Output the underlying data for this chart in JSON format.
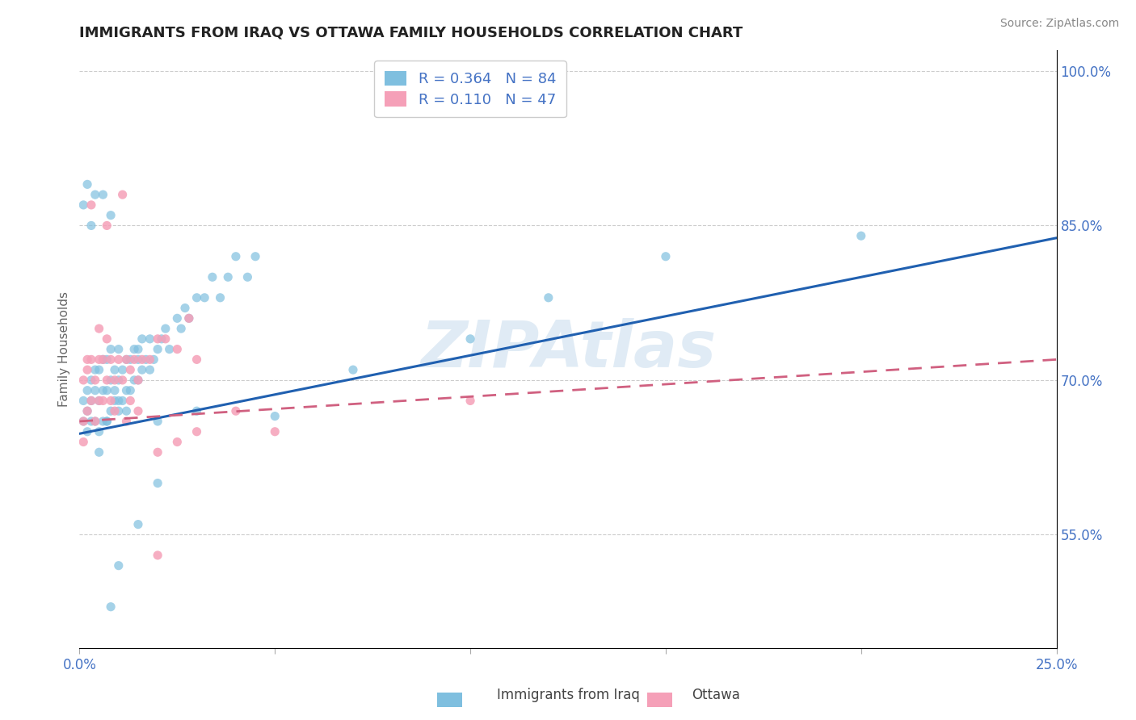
{
  "title": "IMMIGRANTS FROM IRAQ VS OTTAWA FAMILY HOUSEHOLDS CORRELATION CHART",
  "source_text": "Source: ZipAtlas.com",
  "ylabel": "Family Households",
  "watermark": "ZIPAtlas",
  "xlim": [
    0.0,
    0.25
  ],
  "ylim": [
    0.44,
    1.02
  ],
  "ytick_right": [
    0.55,
    0.7,
    0.85,
    1.0
  ],
  "ytick_right_labels": [
    "55.0%",
    "70.0%",
    "85.0%",
    "100.0%"
  ],
  "blue_R": 0.364,
  "blue_N": 84,
  "pink_R": 0.11,
  "pink_N": 47,
  "blue_color": "#7fbfdf",
  "pink_color": "#f5a0b8",
  "blue_line_color": "#2060b0",
  "pink_line_color": "#d06080",
  "legend_label_blue": "Immigrants from Iraq",
  "legend_label_pink": "Ottawa",
  "blue_scatter_x": [
    0.001,
    0.001,
    0.002,
    0.002,
    0.002,
    0.003,
    0.003,
    0.003,
    0.004,
    0.004,
    0.004,
    0.005,
    0.005,
    0.005,
    0.006,
    0.006,
    0.006,
    0.007,
    0.007,
    0.007,
    0.008,
    0.008,
    0.008,
    0.009,
    0.009,
    0.01,
    0.01,
    0.01,
    0.011,
    0.011,
    0.012,
    0.012,
    0.013,
    0.013,
    0.014,
    0.014,
    0.015,
    0.015,
    0.016,
    0.016,
    0.017,
    0.018,
    0.018,
    0.019,
    0.02,
    0.021,
    0.022,
    0.023,
    0.025,
    0.026,
    0.027,
    0.028,
    0.03,
    0.032,
    0.034,
    0.036,
    0.038,
    0.04,
    0.043,
    0.045,
    0.001,
    0.002,
    0.003,
    0.004,
    0.005,
    0.006,
    0.007,
    0.008,
    0.009,
    0.01,
    0.012,
    0.015,
    0.02,
    0.03,
    0.05,
    0.07,
    0.1,
    0.12,
    0.15,
    0.2,
    0.008,
    0.01,
    0.015,
    0.02
  ],
  "blue_scatter_y": [
    0.66,
    0.68,
    0.65,
    0.67,
    0.69,
    0.66,
    0.68,
    0.7,
    0.66,
    0.69,
    0.71,
    0.65,
    0.68,
    0.71,
    0.66,
    0.69,
    0.72,
    0.66,
    0.69,
    0.72,
    0.67,
    0.7,
    0.73,
    0.68,
    0.71,
    0.67,
    0.7,
    0.73,
    0.68,
    0.71,
    0.69,
    0.72,
    0.69,
    0.72,
    0.7,
    0.73,
    0.7,
    0.73,
    0.71,
    0.74,
    0.72,
    0.71,
    0.74,
    0.72,
    0.73,
    0.74,
    0.75,
    0.73,
    0.76,
    0.75,
    0.77,
    0.76,
    0.78,
    0.78,
    0.8,
    0.78,
    0.8,
    0.82,
    0.8,
    0.82,
    0.87,
    0.89,
    0.85,
    0.88,
    0.63,
    0.88,
    0.66,
    0.86,
    0.69,
    0.68,
    0.67,
    0.72,
    0.66,
    0.67,
    0.665,
    0.71,
    0.74,
    0.78,
    0.82,
    0.84,
    0.48,
    0.52,
    0.56,
    0.6
  ],
  "pink_scatter_x": [
    0.001,
    0.001,
    0.002,
    0.002,
    0.003,
    0.003,
    0.004,
    0.004,
    0.005,
    0.005,
    0.006,
    0.006,
    0.007,
    0.007,
    0.008,
    0.008,
    0.009,
    0.01,
    0.011,
    0.012,
    0.013,
    0.014,
    0.015,
    0.016,
    0.018,
    0.02,
    0.022,
    0.025,
    0.028,
    0.03,
    0.001,
    0.002,
    0.003,
    0.005,
    0.007,
    0.009,
    0.011,
    0.013,
    0.015,
    0.02,
    0.025,
    0.03,
    0.04,
    0.05,
    0.1,
    0.012,
    0.02
  ],
  "pink_scatter_y": [
    0.66,
    0.7,
    0.67,
    0.71,
    0.68,
    0.72,
    0.66,
    0.7,
    0.68,
    0.72,
    0.68,
    0.72,
    0.7,
    0.74,
    0.68,
    0.72,
    0.7,
    0.72,
    0.7,
    0.72,
    0.71,
    0.72,
    0.7,
    0.72,
    0.72,
    0.74,
    0.74,
    0.73,
    0.76,
    0.72,
    0.64,
    0.72,
    0.87,
    0.75,
    0.85,
    0.67,
    0.88,
    0.68,
    0.67,
    0.63,
    0.64,
    0.65,
    0.67,
    0.65,
    0.68,
    0.66,
    0.53
  ],
  "blue_trend_x": [
    0.0,
    0.25
  ],
  "blue_trend_y": [
    0.648,
    0.838
  ],
  "pink_trend_x": [
    0.0,
    0.25
  ],
  "pink_trend_y": [
    0.66,
    0.72
  ]
}
